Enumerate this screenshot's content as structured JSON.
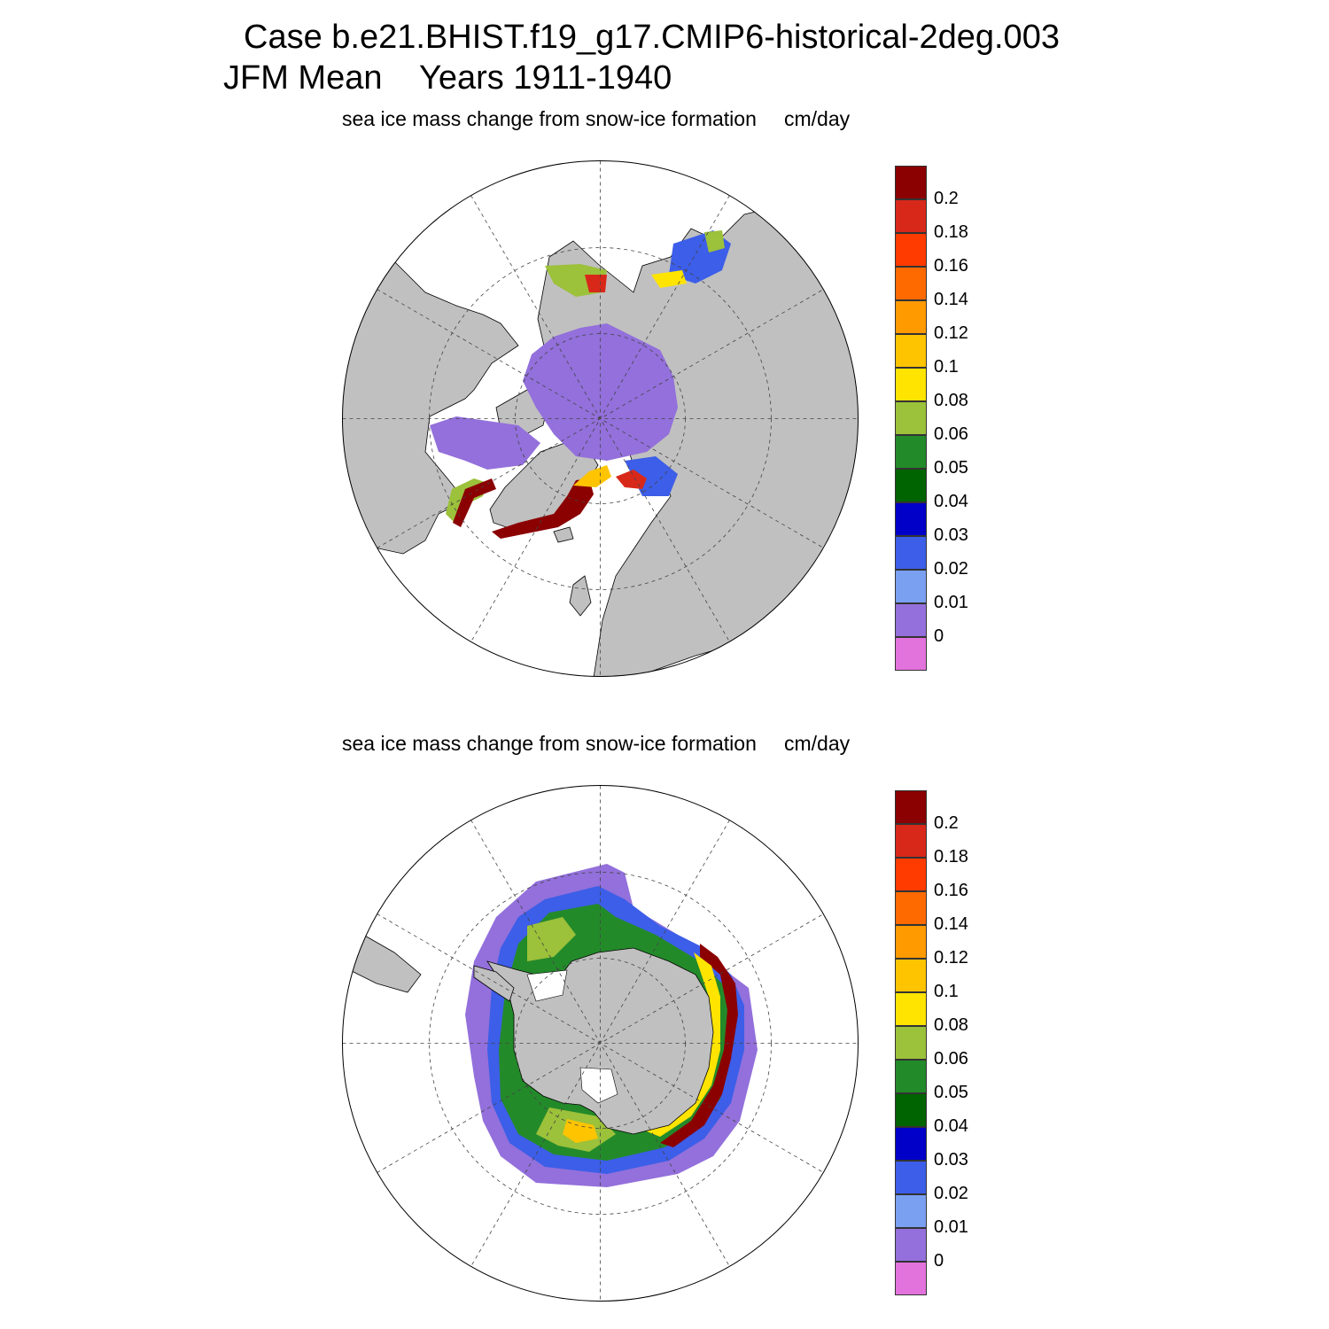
{
  "title": {
    "line1": "Case b.e21.BHIST.f19_g17.CMIP6-historical-2deg.003",
    "line2": "JFM Mean    Years 1911-1940"
  },
  "panels": [
    {
      "id": "north",
      "variable_label": "sea ice mass change from snow-ice formation",
      "units": "cm/day"
    },
    {
      "id": "south",
      "variable_label": "sea ice mass change from snow-ice formation",
      "units": "cm/day"
    }
  ],
  "colorbar": {
    "labels": [
      "0.2",
      "0.18",
      "0.16",
      "0.14",
      "0.12",
      "0.1",
      "0.08",
      "0.06",
      "0.05",
      "0.04",
      "0.03",
      "0.02",
      "0.01",
      "0"
    ],
    "colors": [
      "#8b0000",
      "#d8281a",
      "#ff3b00",
      "#ff6a00",
      "#ff9a00",
      "#ffc400",
      "#ffe400",
      "#9cc13a",
      "#238a2a",
      "#006400",
      "#0000c8",
      "#3c5ee8",
      "#7aa0f2",
      "#9370db",
      "#e373dc"
    ]
  },
  "map_style": {
    "land_color": "#c0c0c0",
    "ocean_color": "#ffffff",
    "grid": "dashed"
  }
}
